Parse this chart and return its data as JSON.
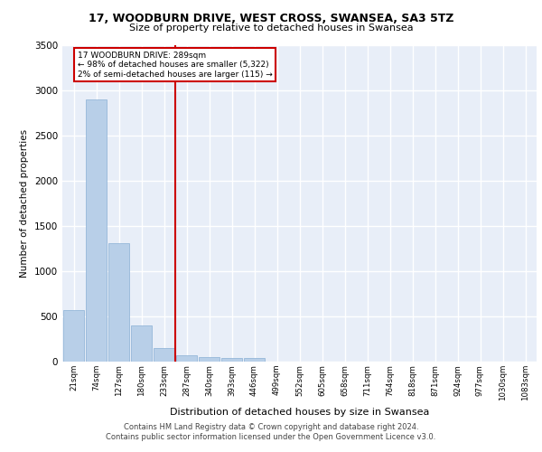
{
  "title1": "17, WOODBURN DRIVE, WEST CROSS, SWANSEA, SA3 5TZ",
  "title2": "Size of property relative to detached houses in Swansea",
  "xlabel": "Distribution of detached houses by size in Swansea",
  "ylabel": "Number of detached properties",
  "bar_labels": [
    "21sqm",
    "74sqm",
    "127sqm",
    "180sqm",
    "233sqm",
    "287sqm",
    "340sqm",
    "393sqm",
    "446sqm",
    "499sqm",
    "552sqm",
    "605sqm",
    "658sqm",
    "711sqm",
    "764sqm",
    "818sqm",
    "871sqm",
    "924sqm",
    "977sqm",
    "1030sqm",
    "1083sqm"
  ],
  "bar_values": [
    570,
    2900,
    1310,
    400,
    150,
    75,
    55,
    45,
    40,
    0,
    0,
    0,
    0,
    0,
    0,
    0,
    0,
    0,
    0,
    0,
    0
  ],
  "bar_color": "#b8cfe8",
  "bar_edgecolor": "#8aafd4",
  "vline_color": "#cc0000",
  "annotation_text": "17 WOODBURN DRIVE: 289sqm\n← 98% of detached houses are smaller (5,322)\n2% of semi-detached houses are larger (115) →",
  "annotation_box_color": "#cc0000",
  "ylim": [
    0,
    3500
  ],
  "yticks": [
    0,
    500,
    1000,
    1500,
    2000,
    2500,
    3000,
    3500
  ],
  "background_color": "#e8eef8",
  "grid_color": "#ffffff",
  "footer": "Contains HM Land Registry data © Crown copyright and database right 2024.\nContains public sector information licensed under the Open Government Licence v3.0."
}
